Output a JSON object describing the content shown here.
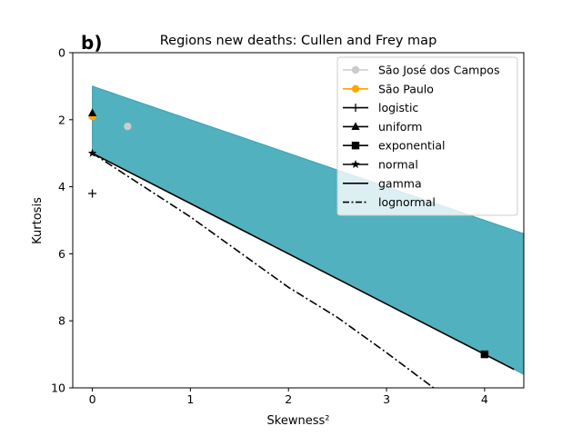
{
  "chart_data": {
    "type": "line",
    "panel_label": "b)",
    "title": "Regions new deaths: Cullen and Frey map",
    "xlabel": "Skewness²",
    "ylabel": "Kurtosis",
    "xlim": [
      -0.2,
      4.4
    ],
    "ylim": [
      10,
      0
    ],
    "y_inverted": true,
    "x_ticks": [
      0,
      1,
      2,
      3,
      4
    ],
    "y_ticks": [
      0,
      2,
      4,
      6,
      8,
      10
    ],
    "grid": false,
    "legend_position": "top-right",
    "beta_region": {
      "color": "#52b1bf",
      "polygon": [
        [
          0,
          1.0
        ],
        [
          4.4,
          5.4
        ],
        [
          4.4,
          9.6
        ],
        [
          0,
          3.0
        ]
      ]
    },
    "series": [
      {
        "name": "São José dos Campos",
        "kind": "point",
        "color": "#cccccc",
        "marker": "circle",
        "points": [
          [
            0.36,
            2.2
          ]
        ]
      },
      {
        "name": "São Paulo",
        "kind": "point",
        "color": "#ffa500",
        "marker": "circle",
        "points": [
          [
            0.0,
            1.9
          ]
        ]
      },
      {
        "name": "logistic",
        "kind": "point",
        "color": "#000000",
        "marker": "plus",
        "points": [
          [
            0.0,
            4.2
          ]
        ]
      },
      {
        "name": "uniform",
        "kind": "point",
        "color": "#000000",
        "marker": "triangle",
        "points": [
          [
            0.0,
            1.8
          ]
        ]
      },
      {
        "name": "exponential",
        "kind": "point",
        "color": "#000000",
        "marker": "square",
        "points": [
          [
            4.0,
            9.0
          ]
        ]
      },
      {
        "name": "normal",
        "kind": "point",
        "color": "#000000",
        "marker": "star",
        "points": [
          [
            0.0,
            3.0
          ]
        ]
      },
      {
        "name": "gamma",
        "kind": "line",
        "color": "#000000",
        "dash": "solid",
        "points": [
          [
            0.0,
            3.0
          ],
          [
            4.3,
            9.45
          ]
        ]
      },
      {
        "name": "lognormal",
        "kind": "line",
        "color": "#000000",
        "dash": "dashdot",
        "points": [
          [
            0.0,
            3.0
          ],
          [
            0.5,
            3.95
          ],
          [
            1.0,
            4.9
          ],
          [
            1.5,
            5.95
          ],
          [
            2.0,
            7.0
          ],
          [
            2.5,
            7.9
          ],
          [
            3.0,
            8.95
          ],
          [
            3.48,
            10.0
          ]
        ]
      }
    ]
  }
}
